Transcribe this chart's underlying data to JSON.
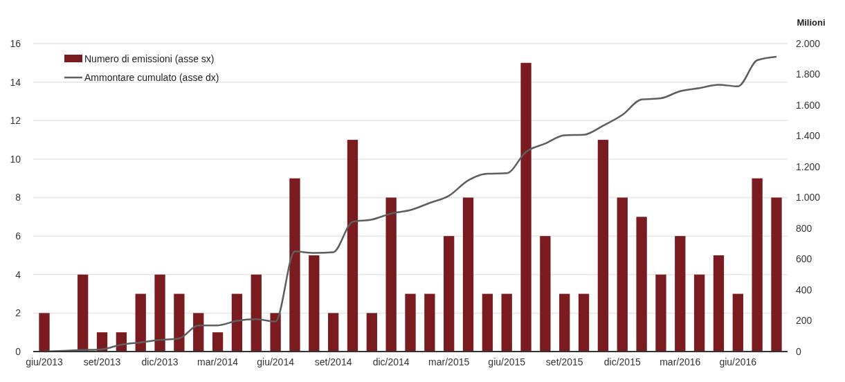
{
  "chart_data": {
    "type": "bar",
    "y2label": "Milioni",
    "categories": [
      "giu/2013",
      null,
      null,
      "set/2013",
      null,
      null,
      "dic/2013",
      null,
      null,
      "mar/2014",
      null,
      null,
      "giu/2014",
      null,
      null,
      "set/2014",
      null,
      null,
      "dic/2014",
      null,
      null,
      "mar/2015",
      null,
      null,
      "giu/2015",
      null,
      null,
      "set/2015",
      null,
      null,
      "dic/2015",
      null,
      null,
      "mar/2016",
      null,
      null,
      "giu/2016",
      null,
      null
    ],
    "series": [
      {
        "name": "Numero di emissioni (asse sx)",
        "color": "#7a1c1f",
        "values": [
          2,
          0,
          4,
          1,
          1,
          3,
          4,
          3,
          2,
          1,
          3,
          4,
          2,
          9,
          5,
          2,
          11,
          2,
          8,
          3,
          3,
          6,
          8,
          3,
          3,
          15,
          6,
          3,
          3,
          11,
          8,
          7,
          4,
          6,
          4,
          5,
          3,
          9,
          8
        ]
      },
      {
        "name": "Ammontare cumulato (asse dx)",
        "type": "line",
        "axis": "y2",
        "color": "#5e5e5e",
        "values": [
          0,
          5,
          10,
          15,
          45,
          60,
          75,
          85,
          170,
          170,
          200,
          210,
          195,
          650,
          640,
          645,
          842,
          857,
          896,
          919,
          965,
          1012,
          1112,
          1155,
          1158,
          1297,
          1351,
          1405,
          1408,
          1467,
          1537,
          1637,
          1645,
          1691,
          1711,
          1733,
          1722,
          1892,
          1915
        ]
      }
    ],
    "ylim": [
      0,
      16
    ],
    "yticks": [
      0,
      2,
      4,
      6,
      8,
      10,
      12,
      14,
      16
    ],
    "y2lim": [
      0,
      2000
    ],
    "y2ticks": [
      0,
      200,
      400,
      600,
      800,
      {
        "value": 1000,
        "label": "1.000"
      },
      {
        "value": 1200,
        "label": "1.200"
      },
      {
        "value": 1400,
        "label": "1.400"
      },
      {
        "value": 1600,
        "label": "1.600"
      },
      {
        "value": 1800,
        "label": "1.800"
      },
      {
        "value": 2000,
        "label": "2.000"
      }
    ],
    "grid": "y",
    "legend": "top left",
    "line_style": "solid",
    "marker": "none"
  }
}
